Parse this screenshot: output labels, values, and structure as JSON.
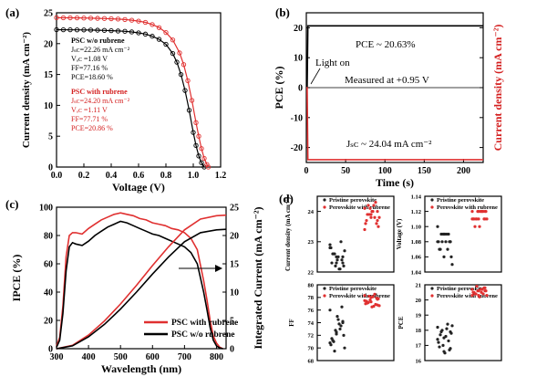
{
  "chart_data": [
    {
      "panel": "(a)",
      "type": "line",
      "xlabel": "Voltage (V)",
      "ylabel": "Current density (mA cm⁻²)",
      "xlim": [
        0.0,
        1.2
      ],
      "ylim": [
        0,
        25
      ],
      "xticks": [
        "0.0",
        "0.2",
        "0.4",
        "0.6",
        "0.8",
        "1.0",
        "1.2"
      ],
      "yticks": [
        "0",
        "5",
        "10",
        "15",
        "20",
        "25"
      ],
      "grid": false,
      "annotations": {
        "without": [
          "PSC w/o rubrene",
          "Jₛᴄ=22.26 mA cm⁻²",
          "Vₒᴄ =1.08 V",
          "FF=77.16 %",
          "PCE=18.60 %"
        ],
        "with": [
          "PSC with rubrene",
          "Jₛᴄ=24.20 mA cm⁻²",
          "Vₒᴄ =1.11 V",
          "FF=77.71 %",
          "PCE=20.86 %"
        ]
      },
      "series": [
        {
          "name": "PSC w/o rubrene",
          "color": "#000000",
          "marker": "open-circle",
          "x": [
            0.0,
            0.05,
            0.1,
            0.15,
            0.2,
            0.25,
            0.3,
            0.35,
            0.4,
            0.45,
            0.5,
            0.55,
            0.6,
            0.65,
            0.7,
            0.75,
            0.8,
            0.85,
            0.88,
            0.91,
            0.94,
            0.97,
            1.0,
            1.02,
            1.04,
            1.06,
            1.08
          ],
          "y": [
            22.26,
            22.25,
            22.24,
            22.23,
            22.22,
            22.2,
            22.18,
            22.15,
            22.1,
            22.05,
            22.0,
            21.9,
            21.75,
            21.55,
            21.2,
            20.7,
            19.9,
            18.4,
            17.0,
            15.0,
            12.4,
            9.2,
            5.6,
            3.5,
            1.8,
            0.7,
            0.0
          ]
        },
        {
          "name": "PSC with rubrene",
          "color": "#e03030",
          "marker": "open-circle",
          "x": [
            0.0,
            0.05,
            0.1,
            0.15,
            0.2,
            0.25,
            0.3,
            0.35,
            0.4,
            0.45,
            0.5,
            0.55,
            0.6,
            0.65,
            0.7,
            0.75,
            0.8,
            0.85,
            0.9,
            0.93,
            0.96,
            0.99,
            1.02,
            1.04,
            1.06,
            1.08,
            1.1,
            1.11
          ],
          "y": [
            24.2,
            24.19,
            24.18,
            24.17,
            24.15,
            24.13,
            24.1,
            24.07,
            24.03,
            23.98,
            23.9,
            23.8,
            23.65,
            23.45,
            23.1,
            22.6,
            21.8,
            20.6,
            18.5,
            16.6,
            14.0,
            10.8,
            7.2,
            5.0,
            3.0,
            1.4,
            0.4,
            0.0
          ]
        }
      ]
    },
    {
      "panel": "(b)",
      "type": "line",
      "xlabel": "Time (s)",
      "ylabel_left": "PCE (%)",
      "ylabel_right": "Current density (mA cm⁻²)",
      "xlim": [
        0,
        225
      ],
      "ylim": [
        -25,
        25
      ],
      "xticks": [
        "0",
        "50",
        "100",
        "150",
        "200"
      ],
      "yticks": [
        "-20",
        "-10",
        "0",
        "10",
        "20"
      ],
      "annotations": [
        "PCE ~ 20.63%",
        "Light on",
        "Measured at +0.95 V",
        "Jₛᴄ ~ 24.04 mA cm⁻²"
      ],
      "series": [
        {
          "color": "#000000",
          "x": [
            0,
            1,
            2,
            3,
            225
          ],
          "y": [
            0,
            0,
            20.63,
            20.63,
            20.63
          ]
        },
        {
          "color": "#e03030",
          "x": [
            0,
            1,
            2,
            3,
            225
          ],
          "y": [
            0,
            0,
            -24.04,
            -24.04,
            -24.04
          ]
        }
      ]
    },
    {
      "panel": "(c)",
      "type": "line",
      "xlabel": "Wavelength (nm)",
      "ylabel_left": "IPCE (%)",
      "ylabel_right": "Integrated Current (mA cm⁻²)",
      "xlim": [
        300,
        830
      ],
      "ylim_left": [
        0,
        100
      ],
      "ylim_right": [
        0,
        25
      ],
      "xticks": [
        "300",
        "400",
        "500",
        "600",
        "700",
        "800"
      ],
      "yticks_left": [
        "0",
        "20",
        "40",
        "60",
        "80",
        "100"
      ],
      "yticks_right": [
        "0",
        "5",
        "10",
        "15",
        "20",
        "25"
      ],
      "legend": [
        "PSC with rubrene",
        "PSC w/o rubrene"
      ],
      "legend_position": "bottom-center",
      "series": [
        {
          "name": "PSC with rubrene",
          "color": "#e03030",
          "x": [
            300,
            310,
            320,
            330,
            340,
            350,
            360,
            380,
            400,
            420,
            440,
            460,
            480,
            500,
            520,
            540,
            560,
            580,
            600,
            620,
            640,
            660,
            680,
            700,
            720,
            740,
            760,
            770,
            780,
            790,
            800,
            810,
            820
          ],
          "y": [
            2,
            8,
            30,
            65,
            80,
            82,
            82,
            81,
            85,
            88,
            91,
            93,
            95,
            96,
            95,
            94,
            92,
            91,
            89,
            88,
            87,
            85,
            84,
            82,
            78,
            70,
            48,
            35,
            20,
            9,
            4,
            1,
            0
          ]
        },
        {
          "name": "PSC w/o rubrene",
          "color": "#000000",
          "x": [
            300,
            310,
            320,
            330,
            340,
            350,
            360,
            380,
            400,
            420,
            440,
            460,
            480,
            500,
            520,
            540,
            560,
            580,
            600,
            620,
            640,
            660,
            680,
            700,
            720,
            740,
            760,
            770,
            780,
            790,
            800,
            810,
            820
          ],
          "y": [
            1,
            6,
            25,
            55,
            72,
            75,
            74,
            73,
            76,
            80,
            83,
            86,
            88,
            90,
            89,
            87,
            85,
            83,
            81,
            80,
            78,
            76,
            74,
            72,
            68,
            60,
            40,
            28,
            15,
            6,
            2,
            0.5,
            0
          ]
        },
        {
          "name": "PSC with rubrene (integrated)",
          "color": "#e03030",
          "axis": "right",
          "x": [
            300,
            350,
            400,
            450,
            500,
            550,
            600,
            650,
            700,
            750,
            800,
            830
          ],
          "y": [
            0,
            0.6,
            2.4,
            4.9,
            7.9,
            11.2,
            14.7,
            18.0,
            21.0,
            22.9,
            23.5,
            23.6
          ]
        },
        {
          "name": "PSC w/o rubrene (integrated)",
          "color": "#000000",
          "axis": "right",
          "x": [
            300,
            350,
            400,
            450,
            500,
            550,
            600,
            650,
            700,
            750,
            800,
            830
          ],
          "y": [
            0,
            0.5,
            2.1,
            4.3,
            7.0,
            10.0,
            13.2,
            16.2,
            18.9,
            20.5,
            21.0,
            21.1
          ]
        }
      ]
    },
    {
      "panel": "(d)",
      "type": "scatter",
      "legend": [
        "Pristine perovskite",
        "Perovskite with rubrene"
      ],
      "subplots": [
        {
          "ylabel": "Current density (mA cm⁻²)",
          "ylim": [
            22,
            24.5
          ],
          "yticks": [
            "22",
            "23",
            "24"
          ],
          "series": [
            {
              "name": "Pristine perovskite",
              "color": "#222222",
              "y": [
                22.9,
                22.5,
                22.3,
                22.6,
                22.1,
                22.8,
                22.4,
                22.2,
                22.6,
                23.0,
                22.3,
                22.5,
                22.7,
                22.2,
                22.4,
                22.6,
                22.1,
                22.8,
                22.3,
                22.5
              ]
            },
            {
              "name": "Perovskite with rubrene",
              "color": "#e03030",
              "y": [
                24.1,
                23.9,
                23.7,
                24.2,
                23.8,
                23.6,
                24.0,
                23.5,
                23.9,
                24.3,
                23.7,
                24.0,
                23.8,
                24.1,
                23.6,
                23.9,
                24.2,
                23.4,
                23.8,
                24.0
              ]
            }
          ]
        },
        {
          "ylabel": "Voltage (V)",
          "ylim": [
            1.04,
            1.14
          ],
          "yticks": [
            "1.04",
            "1.06",
            "1.08",
            "1.10",
            "1.12",
            "1.14"
          ],
          "series": [
            {
              "name": "Pristine perovskite",
              "color": "#222222",
              "y": [
                1.1,
                1.09,
                1.08,
                1.09,
                1.07,
                1.08,
                1.09,
                1.06,
                1.08,
                1.09,
                1.07,
                1.08,
                1.05,
                1.09,
                1.08,
                1.07,
                1.09,
                1.08,
                1.06,
                1.08
              ]
            },
            {
              "name": "Perovskite with rubrene",
              "color": "#e03030",
              "y": [
                1.12,
                1.11,
                1.12,
                1.11,
                1.12,
                1.11,
                1.1,
                1.12,
                1.11,
                1.12,
                1.11,
                1.12,
                1.11,
                1.12,
                1.11,
                1.1,
                1.12,
                1.11,
                1.12,
                1.11
              ]
            }
          ]
        },
        {
          "ylabel": "FF",
          "ylim": [
            68,
            80
          ],
          "yticks": [
            "68",
            "70",
            "72",
            "74",
            "76",
            "78",
            "80"
          ],
          "series": [
            {
              "name": "Pristine perovskite",
              "color": "#222222",
              "y": [
                76.0,
                72.5,
                74.0,
                71.0,
                73.0,
                70.5,
                75.0,
                72.0,
                69.5,
                73.5,
                71.5,
                74.5,
                70.0,
                72.8,
                76.5,
                71.2,
                73.8,
                70.8,
                72.2,
                74.2
              ]
            },
            {
              "name": "Perovskite with rubrene",
              "color": "#e03030",
              "y": [
                77.5,
                78.0,
                76.8,
                77.2,
                78.5,
                77.0,
                76.5,
                77.8,
                78.2,
                76.9,
                77.4,
                78.1,
                76.7,
                77.6,
                77.9,
                77.1,
                76.6,
                78.3,
                77.3,
                77.7
              ]
            }
          ]
        },
        {
          "ylabel": "PCE",
          "ylim": [
            16,
            21
          ],
          "yticks": [
            "16",
            "17",
            "18",
            "19",
            "20",
            "21"
          ],
          "series": [
            {
              "name": "Pristine perovskite",
              "color": "#222222",
              "y": [
                18.2,
                17.5,
                16.8,
                17.9,
                18.4,
                17.2,
                16.5,
                17.8,
                18.0,
                17.3,
                16.9,
                17.6,
                18.3,
                17.0,
                16.7,
                17.7,
                18.1,
                17.4,
                16.6,
                17.9
              ]
            },
            {
              "name": "Perovskite with rubrene",
              "color": "#e03030",
              "y": [
                20.3,
                20.6,
                20.8,
                20.4,
                20.7,
                20.5,
                20.2,
                20.6,
                20.9,
                20.4,
                20.5,
                20.7,
                20.3,
                20.6,
                20.8,
                20.4,
                20.5,
                20.7,
                20.3,
                20.6
              ]
            }
          ]
        }
      ]
    }
  ],
  "panel_labels": [
    "(a)",
    "(b)",
    "(c)",
    "(d)"
  ]
}
